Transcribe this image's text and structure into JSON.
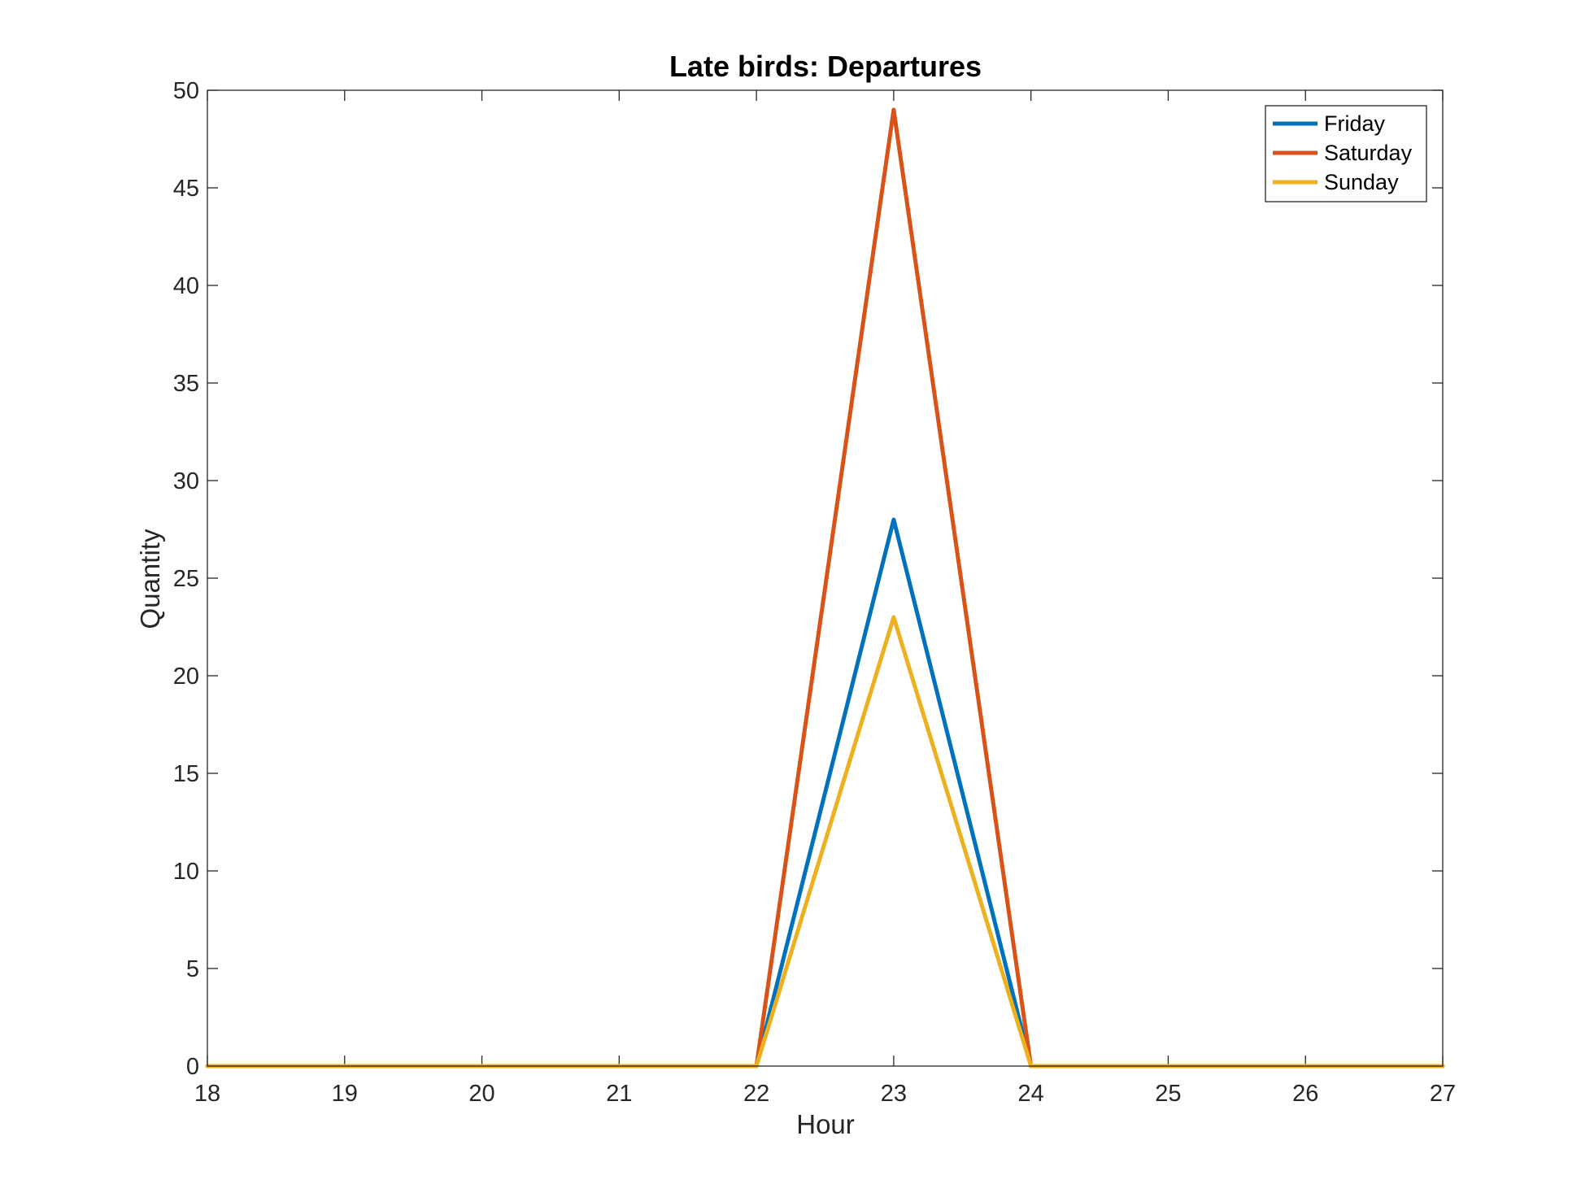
{
  "chart_data": {
    "type": "line",
    "title": "Late birds: Departures",
    "xlabel": "Hour",
    "ylabel": "Quantity",
    "xlim": [
      18,
      27
    ],
    "ylim": [
      0,
      50
    ],
    "xticks": [
      18,
      19,
      20,
      21,
      22,
      23,
      24,
      25,
      26,
      27
    ],
    "yticks": [
      0,
      5,
      10,
      15,
      20,
      25,
      30,
      35,
      40,
      45,
      50
    ],
    "grid": false,
    "legend_position": "top-right",
    "x": [
      18,
      19,
      20,
      21,
      22,
      23,
      24,
      25,
      26,
      27
    ],
    "series": [
      {
        "name": "Friday",
        "color": "#0072BD",
        "values": [
          0,
          0,
          0,
          0,
          0,
          28,
          0,
          0,
          0,
          0
        ]
      },
      {
        "name": "Saturday",
        "color": "#D95319",
        "values": [
          0,
          0,
          0,
          0,
          0,
          49,
          0,
          0,
          0,
          0
        ]
      },
      {
        "name": "Sunday",
        "color": "#EDB120",
        "values": [
          0,
          0,
          0,
          0,
          0,
          23,
          0,
          0,
          0,
          0
        ]
      }
    ]
  }
}
